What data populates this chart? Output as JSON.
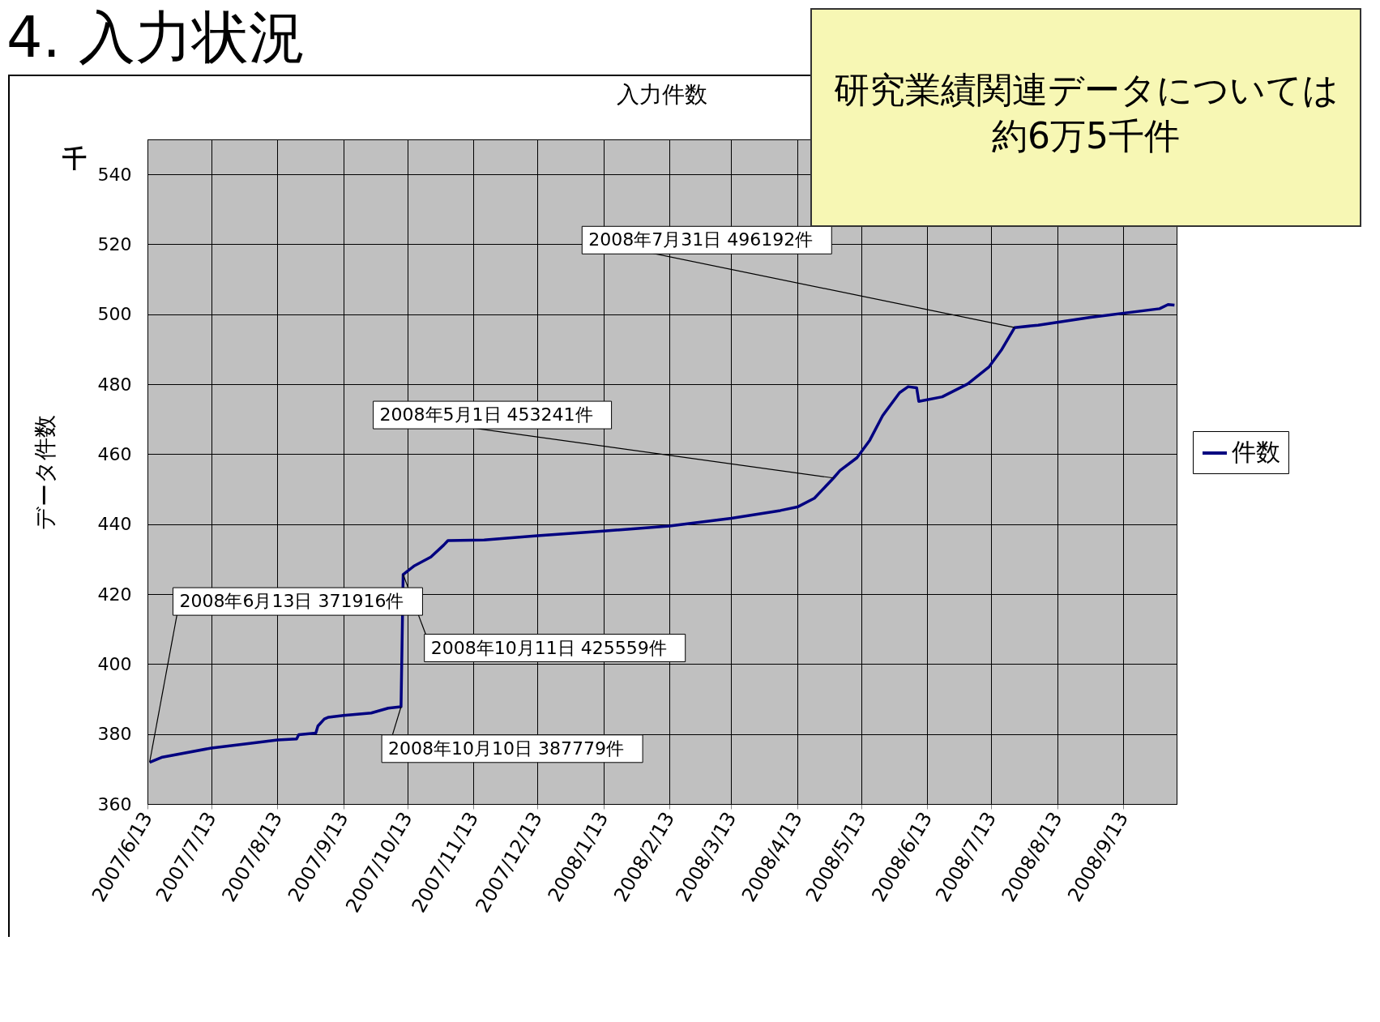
{
  "chart_data": {
    "type": "line",
    "title": "4. 入力状況",
    "subtitle": "入力件数",
    "ylabel": "データ件数",
    "x": [
      "2007-06-14",
      "2007-06-20",
      "2007-07-13",
      "2007-07-31",
      "2007-08-13",
      "2007-08-22",
      "2007-08-23",
      "2007-08-31",
      "2007-09-01",
      "2007-09-04",
      "2007-09-06",
      "2007-09-13",
      "2007-09-26",
      "2007-10-04",
      "2007-10-10",
      "2007-10-11",
      "2007-10-16",
      "2007-10-24",
      "2007-10-30",
      "2007-11-01",
      "2007-11-18",
      "2007-12-13",
      "2008-01-13",
      "2008-02-13",
      "2008-03-13",
      "2008-04-05",
      "2008-04-13",
      "2008-04-21",
      "2008-04-30",
      "2008-05-03",
      "2008-05-11",
      "2008-05-17",
      "2008-05-23",
      "2008-05-31",
      "2008-06-04",
      "2008-06-08",
      "2008-06-09",
      "2008-06-20",
      "2008-07-02",
      "2008-07-12",
      "2008-07-18",
      "2008-07-24",
      "2008-08-04",
      "2008-08-28",
      "2008-09-30",
      "2008-10-04",
      "2008-10-07"
    ],
    "series": [
      {
        "name": "件数",
        "color": "#000080",
        "values": [
          371.9,
          373.4,
          376,
          377.3,
          378.3,
          378.6,
          379.8,
          380.3,
          382.3,
          384.3,
          384.8,
          385.3,
          386,
          387.4,
          387.8,
          425.6,
          428,
          430.6,
          434,
          435.3,
          435.5,
          436.7,
          438,
          439.5,
          441.7,
          443.9,
          444.9,
          447.4,
          453.2,
          455.3,
          459,
          464,
          471,
          477.6,
          479.3,
          479,
          475.1,
          476.4,
          480.1,
          485,
          490,
          496.2,
          496.9,
          499.1,
          501.6,
          502.8,
          502.6
        ]
      }
    ],
    "xlim": [
      "2007-06-13",
      "2008-10-08"
    ],
    "xticks": [
      {
        "value": "2007-06-13",
        "label": "2007/6/13"
      },
      {
        "value": "2007-07-13",
        "label": "2007/7/13"
      },
      {
        "value": "2007-08-13",
        "label": "2007/8/13"
      },
      {
        "value": "2007-09-13",
        "label": "2007/9/13"
      },
      {
        "value": "2007-10-13",
        "label": "2007/10/13"
      },
      {
        "value": "2007-11-13",
        "label": "2007/11/13"
      },
      {
        "value": "2007-12-13",
        "label": "2007/12/13"
      },
      {
        "value": "2008-01-13",
        "label": "2008/1/13"
      },
      {
        "value": "2008-02-13",
        "label": "2008/2/13"
      },
      {
        "value": "2008-03-13",
        "label": "2008/3/13"
      },
      {
        "value": "2008-04-13",
        "label": "2008/4/13"
      },
      {
        "value": "2008-05-13",
        "label": "2008/5/13"
      },
      {
        "value": "2008-06-13",
        "label": "2008/6/13"
      },
      {
        "value": "2008-07-13",
        "label": "2008/7/13"
      },
      {
        "value": "2008-08-13",
        "label": "2008/8/13"
      },
      {
        "value": "2008-09-13",
        "label": "2008/9/13"
      }
    ],
    "ylim": [
      360,
      550
    ],
    "yticks": [
      360,
      380,
      400,
      420,
      440,
      460,
      480,
      500,
      520,
      540
    ],
    "grid": true,
    "legend": "right",
    "annotations": [
      "千",
      "研究業績関連データについては約6万5千件",
      {
        "text": "2008年6月13日 371916件",
        "x": "2007-06-14",
        "y": 371.9
      },
      {
        "text": "2008年10月10日 387779件",
        "x": "2007-10-10",
        "y": 387.8
      },
      {
        "text": "2008年10月11日 425559件",
        "x": "2007-10-11",
        "y": 425.6
      },
      {
        "text": "2008年5月1日 453241件",
        "x": "2008-04-30",
        "y": 453.2
      },
      {
        "text": "2008年7月31日 496192件",
        "x": "2008-07-24",
        "y": 496.2
      }
    ]
  }
}
